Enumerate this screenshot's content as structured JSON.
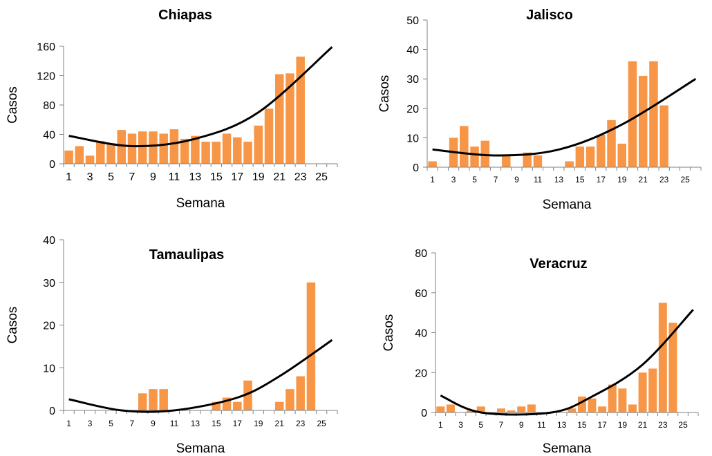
{
  "colors": {
    "bar": "#F79646",
    "trend": "#000000",
    "axis": "#808080"
  },
  "chart_data": [
    {
      "type": "bar",
      "title": "Chiapas",
      "xlabel": "Semana",
      "ylabel": "Casos",
      "ylim": [
        0,
        160
      ],
      "yticks": [
        0,
        40,
        80,
        120,
        160
      ],
      "xticks": [
        1,
        3,
        5,
        7,
        9,
        11,
        13,
        15,
        17,
        19,
        21,
        23,
        25
      ],
      "xmax_slots": 26,
      "x": [
        1,
        2,
        3,
        4,
        5,
        6,
        7,
        8,
        9,
        10,
        11,
        12,
        13,
        14,
        15,
        16,
        17,
        18,
        19,
        20,
        21,
        22,
        23
      ],
      "values": [
        18,
        24,
        11,
        31,
        28,
        46,
        41,
        44,
        44,
        41,
        47,
        34,
        38,
        30,
        30,
        41,
        36,
        30,
        52,
        75,
        122,
        123,
        146
      ],
      "trendline": {
        "type": "polynomial",
        "order": 2,
        "points": [
          [
            1,
            38
          ],
          [
            7,
            24
          ],
          [
            13,
            34
          ],
          [
            19,
            70
          ],
          [
            26,
            159
          ]
        ]
      }
    },
    {
      "type": "bar",
      "title": "Jalisco",
      "xlabel": "Semana",
      "ylabel": "Casos",
      "ylim": [
        0,
        50
      ],
      "yticks": [
        0,
        10,
        20,
        30,
        40,
        50
      ],
      "xticks": [
        1,
        3,
        5,
        7,
        9,
        11,
        13,
        15,
        17,
        19,
        21,
        23,
        25
      ],
      "xmax_slots": 26,
      "x": [
        1,
        2,
        3,
        4,
        5,
        6,
        7,
        8,
        9,
        10,
        11,
        12,
        13,
        14,
        15,
        16,
        17,
        18,
        19,
        20,
        21,
        22,
        23
      ],
      "values": [
        2,
        0,
        10,
        14,
        7,
        9,
        0,
        4,
        0,
        5,
        4,
        0,
        0,
        2,
        7,
        7,
        11,
        16,
        8,
        36,
        31,
        36,
        21
      ],
      "trendline": {
        "type": "polynomial",
        "order": 2,
        "points": [
          [
            1,
            6
          ],
          [
            7,
            4
          ],
          [
            13,
            6
          ],
          [
            19,
            14.5
          ],
          [
            26,
            30
          ]
        ]
      }
    },
    {
      "type": "bar",
      "title": "Tamaulipas",
      "xlabel": "Semana",
      "ylabel": "Casos",
      "ylim": [
        0,
        40
      ],
      "yticks": [
        0,
        10,
        20,
        30,
        40
      ],
      "xticks": [
        1,
        3,
        5,
        7,
        9,
        11,
        13,
        15,
        17,
        19,
        21,
        23,
        25
      ],
      "xmax_slots": 26,
      "x": [
        1,
        2,
        3,
        4,
        5,
        6,
        7,
        8,
        9,
        10,
        11,
        12,
        13,
        14,
        15,
        16,
        17,
        18,
        19,
        20,
        21,
        22,
        23,
        24
      ],
      "values": [
        0,
        0,
        0,
        0,
        0,
        0,
        0,
        4,
        5,
        5,
        0,
        0,
        0,
        0,
        2,
        3,
        2,
        7,
        0,
        0,
        2,
        5,
        8,
        30
      ],
      "trendline": {
        "type": "polynomial",
        "order": 2,
        "points": [
          [
            1,
            2.6
          ],
          [
            6,
            0
          ],
          [
            11,
            0
          ],
          [
            17,
            3
          ],
          [
            21,
            8
          ],
          [
            26,
            16.5
          ]
        ]
      }
    },
    {
      "type": "bar",
      "title": "Veracruz",
      "xlabel": "Semana",
      "ylabel": "Casos",
      "ylim": [
        0,
        80
      ],
      "yticks": [
        0,
        20,
        40,
        60,
        80
      ],
      "xticks": [
        1,
        3,
        5,
        7,
        9,
        11,
        13,
        15,
        17,
        19,
        21,
        23,
        25
      ],
      "xmax_slots": 26,
      "x": [
        1,
        2,
        3,
        4,
        5,
        6,
        7,
        8,
        9,
        10,
        11,
        12,
        13,
        14,
        15,
        16,
        17,
        18,
        19,
        20,
        21,
        22,
        23,
        24
      ],
      "values": [
        3,
        4,
        0,
        1,
        3,
        0,
        2,
        1,
        3,
        4,
        0,
        0,
        0,
        2,
        8,
        7,
        3,
        14,
        12,
        4,
        20,
        22,
        55,
        45
      ],
      "trendline": {
        "type": "polynomial",
        "order": 2,
        "points": [
          [
            1,
            8.5
          ],
          [
            5,
            0
          ],
          [
            12,
            0
          ],
          [
            16,
            8
          ],
          [
            21,
            24
          ],
          [
            26,
            51.5
          ]
        ]
      }
    }
  ]
}
